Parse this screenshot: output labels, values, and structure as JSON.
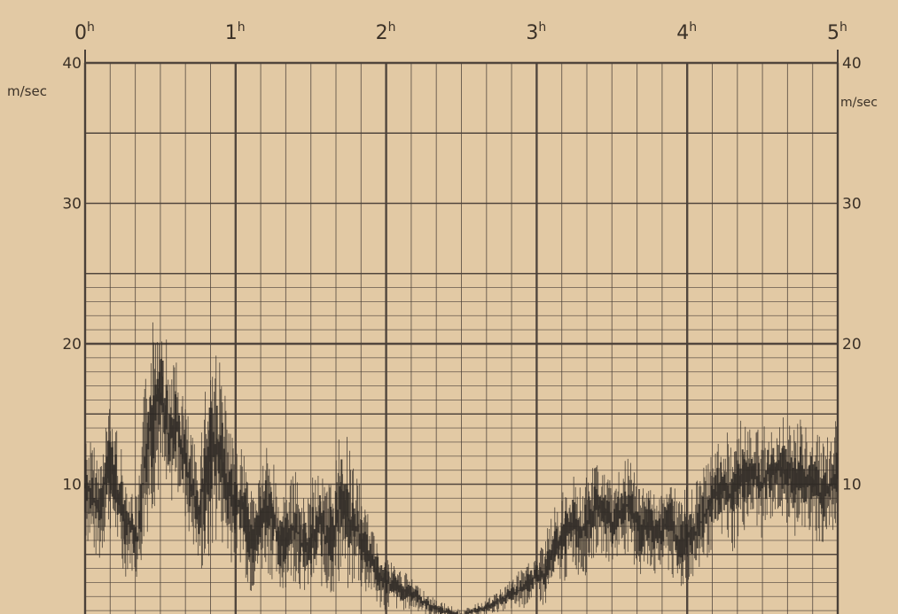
{
  "chart_data": {
    "type": "line",
    "title": "",
    "xlabel": "",
    "ylabel": "m/sec",
    "y_unit_left": "m/sec",
    "y_unit_right": "m/sec",
    "x_ticks": [
      {
        "value": 0,
        "label": "0h"
      },
      {
        "value": 1,
        "label": "1h"
      },
      {
        "value": 2,
        "label": "2h"
      },
      {
        "value": 3,
        "label": "3h"
      },
      {
        "value": 4,
        "label": "4h"
      },
      {
        "value": 5,
        "label": "5h"
      }
    ],
    "y_ticks_left": [
      {
        "value": 10,
        "label": "10"
      },
      {
        "value": 20,
        "label": "20"
      },
      {
        "value": 30,
        "label": "30"
      },
      {
        "value": 40,
        "label": "40"
      }
    ],
    "y_ticks_right": [
      {
        "value": 10,
        "label": "10"
      },
      {
        "value": 20,
        "label": "20"
      },
      {
        "value": 30,
        "label": "30"
      },
      {
        "value": 40,
        "label": "40"
      }
    ],
    "xlim": [
      0,
      5
    ],
    "ylim": [
      0,
      40
    ],
    "grid": true,
    "colors": {
      "background": "#e2c9a4",
      "grid": "#4a4038",
      "trace": "#2f2a26"
    },
    "series": [
      {
        "x": [
          0.0,
          0.05,
          0.1,
          0.15,
          0.2,
          0.25,
          0.3,
          0.35,
          0.4,
          0.45,
          0.5,
          0.55,
          0.6,
          0.65,
          0.7,
          0.75,
          0.8,
          0.85,
          0.9,
          0.95,
          1.0,
          1.05,
          1.1,
          1.15,
          1.2,
          1.25,
          1.3,
          1.35,
          1.4,
          1.45,
          1.5,
          1.55,
          1.6,
          1.65,
          1.7,
          1.75,
          1.8,
          1.85,
          1.9,
          1.95,
          2.0,
          2.1,
          2.2,
          2.3,
          2.4,
          2.5,
          2.6,
          2.7,
          2.8,
          2.9,
          3.0,
          3.05,
          3.1,
          3.15,
          3.2,
          3.25,
          3.3,
          3.35,
          3.4,
          3.45,
          3.5,
          3.55,
          3.6,
          3.65,
          3.7,
          3.75,
          3.8,
          3.85,
          3.9,
          3.95,
          4.0,
          4.05,
          4.1,
          4.15,
          4.2,
          4.25,
          4.3,
          4.35,
          4.4,
          4.45,
          4.5,
          4.55,
          4.6,
          4.65,
          4.7,
          4.75,
          4.8,
          4.85,
          4.9,
          4.95,
          5.0
        ],
        "min": [
          6,
          5,
          4,
          7,
          6,
          3,
          4,
          3,
          6,
          8,
          9,
          7,
          10,
          8,
          6,
          4,
          3,
          5,
          6,
          4,
          5,
          4,
          2,
          3,
          4,
          3,
          2,
          3,
          3,
          2,
          2,
          3,
          2,
          2,
          3,
          2,
          3,
          2,
          2,
          1,
          1,
          1,
          1,
          0.5,
          0.3,
          0.3,
          0.5,
          0.8,
          1,
          1,
          2,
          1,
          2,
          3,
          3,
          4,
          3,
          4,
          5,
          5,
          4,
          5,
          5,
          4,
          3,
          4,
          3,
          4,
          3,
          2,
          3,
          3,
          4,
          5,
          6,
          6,
          5,
          6,
          7,
          7,
          6,
          7,
          8,
          7,
          6,
          7,
          6,
          6,
          5,
          6,
          7
        ],
        "max": [
          14,
          13,
          12,
          16,
          15,
          12,
          10,
          9,
          18,
          22,
          24,
          20,
          19,
          17,
          14,
          12,
          18,
          21,
          19,
          15,
          12,
          13,
          10,
          11,
          13,
          12,
          9,
          10,
          11,
          9,
          10,
          12,
          10,
          11,
          15,
          13,
          11,
          9,
          7,
          6,
          5,
          4,
          3,
          2,
          1.5,
          1,
          1.5,
          2,
          3,
          4,
          5,
          6,
          8,
          9,
          10,
          11,
          10,
          11,
          12,
          11,
          10,
          11,
          12,
          11,
          10,
          11,
          9,
          10,
          11,
          9,
          10,
          10,
          11,
          12,
          13,
          14,
          13,
          15,
          14,
          14,
          14,
          15,
          14,
          15,
          14,
          15,
          14,
          14,
          13,
          14,
          15
        ]
      }
    ]
  }
}
